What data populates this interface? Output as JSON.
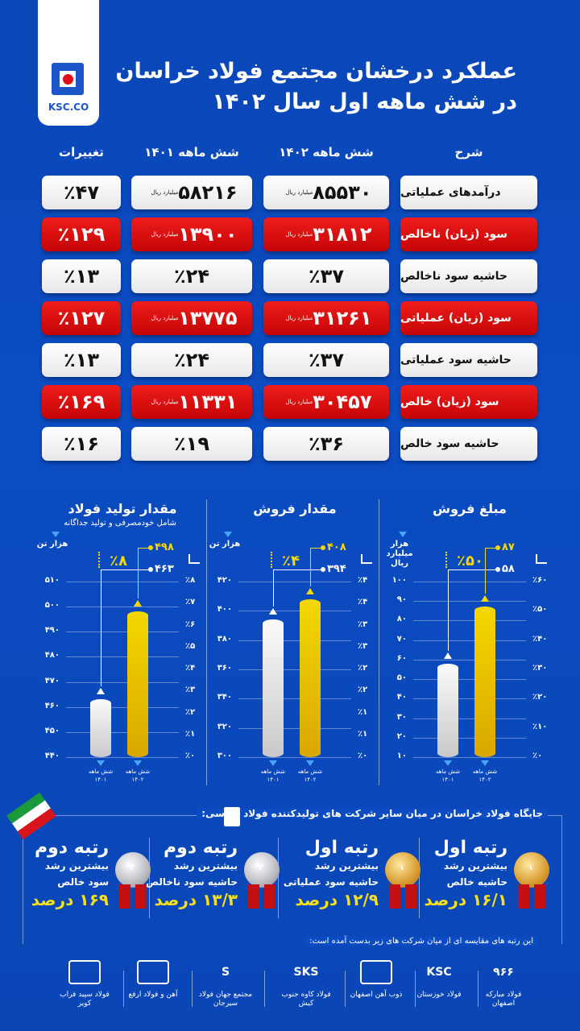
{
  "header": {
    "logo_text": "KSC.CO",
    "title_line1": "عملکرد درخشان مجتمع فولاد خراسان",
    "title_line2": "در شش ماهه اول سال ۱۴۰۲"
  },
  "table": {
    "columns": [
      "تغییرات",
      "شش ماهه ۱۴۰۱",
      "شش ماهه ۱۴۰۲",
      "شرح"
    ],
    "unit": "میلیارد ریال",
    "rows": [
      {
        "label": "درآمدهای عملیاتی",
        "v1402": "۸۵۵۳۰",
        "v1401": "۵۸۲۱۶",
        "change": "٪۴۷",
        "style": "white",
        "unit": true
      },
      {
        "label": "سود (زیان) ناخالص",
        "v1402": "۳۱۸۱۲",
        "v1401": "۱۳۹۰۰",
        "change": "٪۱۲۹",
        "style": "red",
        "unit": true
      },
      {
        "label": "حاشیه سود ناخالص",
        "v1402": "٪۳۷",
        "v1401": "٪۲۴",
        "change": "٪۱۳",
        "style": "white",
        "unit": false
      },
      {
        "label": "سود (زیان) عملیاتی",
        "v1402": "۳۱۲۶۱",
        "v1401": "۱۳۷۷۵",
        "change": "٪۱۲۷",
        "style": "red",
        "unit": true
      },
      {
        "label": "حاشیه سود عملیاتی",
        "v1402": "٪۳۷",
        "v1401": "٪۲۴",
        "change": "٪۱۳",
        "style": "white",
        "unit": false
      },
      {
        "label": "سود (زیان) خالص",
        "v1402": "۳۰۴۵۷",
        "v1401": "۱۱۳۳۱",
        "change": "٪۱۶۹",
        "style": "red",
        "unit": true
      },
      {
        "label": "حاشیه سود خالص",
        "v1402": "٪۳۶",
        "v1401": "٪۱۹",
        "change": "٪۱۶",
        "style": "white",
        "unit": false
      }
    ]
  },
  "colors": {
    "background": "#0b4cc2",
    "red": "#e01010",
    "yellow": "#f3d800",
    "white": "#ffffff"
  },
  "chart_data": [
    {
      "type": "bar",
      "title": "مقدار تولید فولاد",
      "subtitle": "شامل خودمصرفی و تولید جداگانه",
      "ylabel": "هزار تن",
      "categories": [
        "شش ماهه ۱۴۰۱",
        "شش ماهه ۱۴۰۲"
      ],
      "values": [
        463,
        498
      ],
      "value_labels": [
        "۴۶۳",
        "۴۹۸"
      ],
      "change": "٪۸",
      "ylim": [
        440,
        510
      ],
      "yticks": [
        "۵۱۰",
        "۵۰۰",
        "۴۹۰",
        "۴۸۰",
        "۴۷۰",
        "۴۶۰",
        "۴۵۰",
        "۴۴۰"
      ],
      "y2ticks": [
        "٪۸",
        "٪۷",
        "٪۶",
        "٪۵",
        "٪۴",
        "٪۳",
        "٪۲",
        "٪۱",
        "٪۰"
      ],
      "grid": true
    },
    {
      "type": "bar",
      "title": "مقدار فروش",
      "ylabel": "هزار تن",
      "categories": [
        "شش ماهه ۱۴۰۱",
        "شش ماهه ۱۴۰۲"
      ],
      "values": [
        394,
        408
      ],
      "value_labels": [
        "۳۹۴",
        "۴۰۸"
      ],
      "change": "٪۴",
      "ylim": [
        300,
        420
      ],
      "yticks": [
        "۴۲۰",
        "۴۰۰",
        "۳۸۰",
        "۳۶۰",
        "۳۴۰",
        "۳۲۰",
        "۳۰۰"
      ],
      "y2ticks": [
        "٪۴",
        "٪۴",
        "٪۳",
        "٪۳",
        "٪۲",
        "٪۲",
        "٪۱",
        "٪۱",
        "٪۰"
      ],
      "grid": true
    },
    {
      "type": "bar",
      "title": "مبلغ فروش",
      "ylabel": "هزار میلیارد ریال",
      "categories": [
        "شش ماهه ۱۴۰۱",
        "شش ماهه ۱۴۰۲"
      ],
      "values": [
        58,
        87
      ],
      "value_labels": [
        "۵۸",
        "۸۷"
      ],
      "change": "٪۵۰",
      "ylim": [
        10,
        100
      ],
      "yticks": [
        "۱۰۰",
        "۹۰",
        "۸۰",
        "۷۰",
        "۶۰",
        "۵۰",
        "۴۰",
        "۳۰",
        "۲۰",
        "۱۰"
      ],
      "y2ticks": [
        "٪۶۰",
        "٪۵۰",
        "٪۴۰",
        "٪۳۰",
        "٪۲۰",
        "٪۱۰",
        "٪۰"
      ],
      "grid": true
    }
  ],
  "ranking": {
    "heading": "جایگاه فولاد خراسان در میان سایر شرکت های تولیدکننده فولاد بورسی:",
    "items": [
      {
        "rank": "رتبه اول",
        "line1": "بیشترین رشد",
        "line2": "حاشیه خالص",
        "value": "۱۶/۱ درصد",
        "medal": "gold",
        "medal_num": "۱"
      },
      {
        "rank": "رتبه اول",
        "line1": "بیشترین رشد",
        "line2": "حاشیه سود عملیاتی",
        "value": "۱۲/۹ درصد",
        "medal": "gold",
        "medal_num": "۱"
      },
      {
        "rank": "رتبه دوم",
        "line1": "بیشترین رشد",
        "line2": "حاشیه سود ناخالص",
        "value": "۱۳/۳ درصد",
        "medal": "silver",
        "medal_num": "۲"
      },
      {
        "rank": "رتبه دوم",
        "line1": "بیشترین رشد",
        "line2": "سود خالص",
        "value": "۱۶۹ درصد",
        "medal": "silver",
        "medal_num": "۲"
      }
    ],
    "footnote": "این رتبه های مقایسه ای از میان شرکت های زیر بدست آمده است:"
  },
  "companies": [
    {
      "name": "فولاد مبارکه اصفهان",
      "logo": "۹۶۶"
    },
    {
      "name": "فولاد خوزستان",
      "logo": "KSC"
    },
    {
      "name": "ذوب آهن اصفهان",
      "logo": ""
    },
    {
      "name": "فولاد کاوه جنوب کیش",
      "logo": "SKS"
    },
    {
      "name": "مجتمع جهان فولاد سیرجان",
      "logo": "S"
    },
    {
      "name": "آهن و فولاد ارفع",
      "logo": ""
    },
    {
      "name": "فولاد سپید فراب کویر",
      "logo": ""
    }
  ]
}
